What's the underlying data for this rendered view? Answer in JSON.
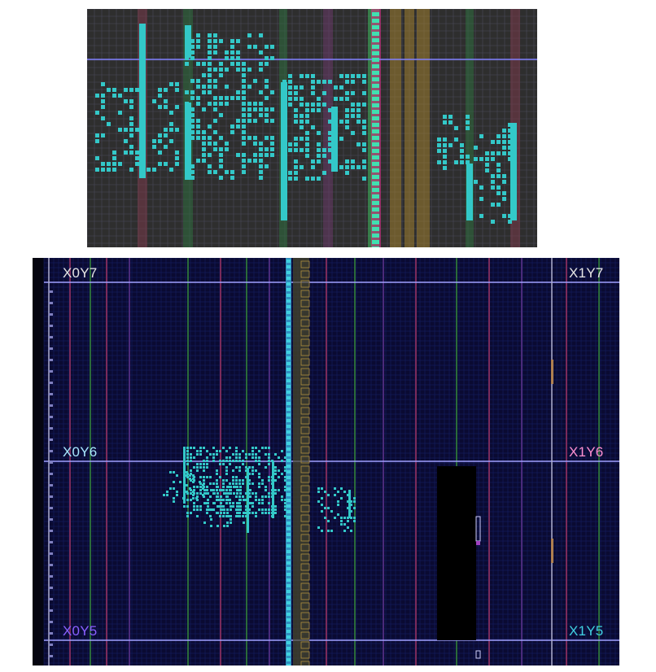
{
  "top_view": {
    "background": "#2e2e2e",
    "grid_color": "#4a4a5a",
    "cell_color": "#33c8c8",
    "column_colors": [
      "#7a3a4a",
      "#2f6f3f",
      "#6a3a6a",
      "#a08030",
      "#e0308a",
      "#40c060"
    ]
  },
  "device_view": {
    "background": "#0a0a32",
    "grid_color": "#16206a",
    "cell_color": "#33c8c8",
    "clock_regions": [
      {
        "label": "X0Y7",
        "color": "#e6e6e6"
      },
      {
        "label": "X1Y7",
        "color": "#e6e6e6"
      },
      {
        "label": "X0Y6",
        "color": "#a8e8ff"
      },
      {
        "label": "X1Y6",
        "color": "#ff90d0"
      },
      {
        "label": "X0Y5",
        "color": "#8a60ff"
      },
      {
        "label": "X1Y5",
        "color": "#40d0e0"
      }
    ]
  }
}
